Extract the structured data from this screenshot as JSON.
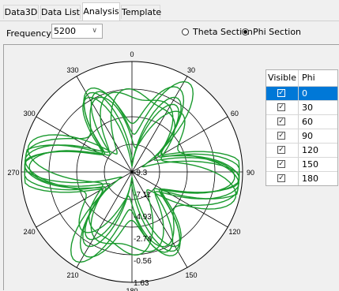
{
  "tabs": [
    {
      "label": "Data3D",
      "active": false
    },
    {
      "label": "Data List",
      "active": false
    },
    {
      "label": "Analysis",
      "active": true
    },
    {
      "label": "Template",
      "active": false
    }
  ],
  "frequency": {
    "label": "Frequency:",
    "value": "5200"
  },
  "section_options": [
    {
      "label": "Theta Section",
      "selected": false
    },
    {
      "label": "Phi Section",
      "selected": true
    }
  ],
  "table": {
    "headers": [
      "Visible",
      "Phi"
    ],
    "rows": [
      {
        "phi": "0",
        "visible": true,
        "selected": true
      },
      {
        "phi": "30",
        "visible": true,
        "selected": false
      },
      {
        "phi": "60",
        "visible": true,
        "selected": false
      },
      {
        "phi": "90",
        "visible": true,
        "selected": false
      },
      {
        "phi": "120",
        "visible": true,
        "selected": false
      },
      {
        "phi": "150",
        "visible": true,
        "selected": false
      },
      {
        "phi": "180",
        "visible": true,
        "selected": false
      }
    ]
  },
  "chart_data": {
    "type": "polar",
    "angle_labels": [
      "0",
      "330",
      "300",
      "270",
      "240",
      "210",
      "180",
      "150",
      "120",
      "90",
      "60",
      "30"
    ],
    "radial_labels": [
      "-9.3",
      "-7.11",
      "-4.93",
      "-2.74",
      "-0.56",
      "1.63"
    ],
    "rlim": [
      -9.3,
      1.63
    ],
    "series_color": "#1a9a2e"
  }
}
